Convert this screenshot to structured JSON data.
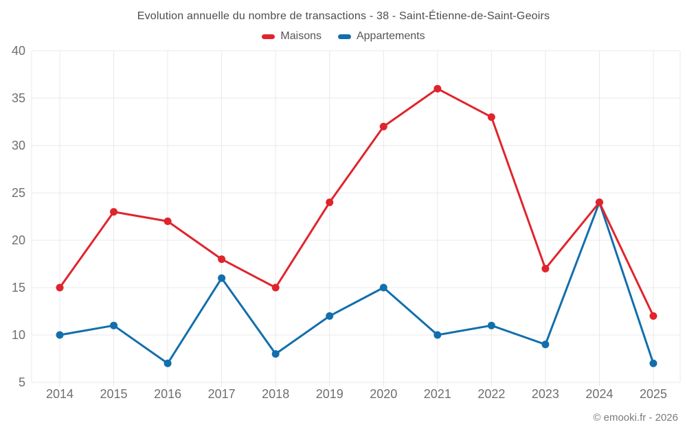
{
  "footer": {
    "text": "© emooki.fr - 2026"
  },
  "chart_data": {
    "type": "line",
    "title": "Evolution annuelle du nombre de transactions - 38 - Saint-Étienne-de-Saint-Geoirs",
    "categories": [
      "2014",
      "2015",
      "2016",
      "2017",
      "2018",
      "2019",
      "2020",
      "2021",
      "2022",
      "2023",
      "2024",
      "2025"
    ],
    "series": [
      {
        "name": "Maisons",
        "color": "#e0242c",
        "values": [
          15,
          23,
          22,
          18,
          15,
          24,
          32,
          36,
          33,
          17,
          24,
          12
        ]
      },
      {
        "name": "Appartements",
        "color": "#126fac",
        "values": [
          10,
          11,
          7,
          16,
          8,
          12,
          15,
          10,
          11,
          9,
          24,
          7
        ]
      }
    ],
    "xlabel": "",
    "ylabel": "",
    "ylim": [
      5,
      40
    ],
    "yticks": [
      5,
      10,
      15,
      20,
      25,
      30,
      35,
      40
    ],
    "grid": true,
    "legend_position": "top",
    "marker": "circle"
  }
}
